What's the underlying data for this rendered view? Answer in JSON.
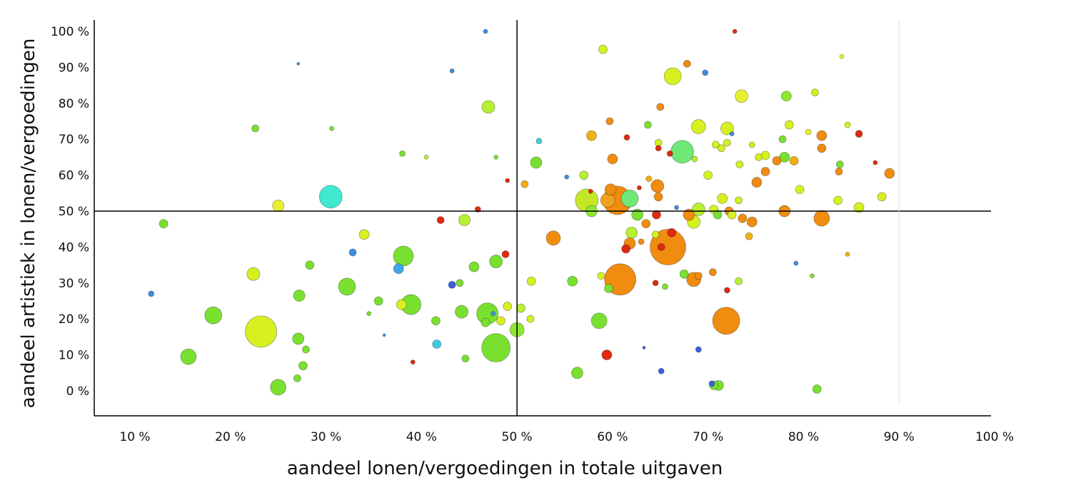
{
  "chart_data": {
    "type": "scatter",
    "title": "",
    "xlabel": "aandeel lonen/vergoedingen in totale uitgaven",
    "ylabel": "aandeel artistiek in lonen/vergoedingen",
    "xlim": [
      5.5,
      100
    ],
    "ylim": [
      -7,
      103
    ],
    "x_ticks": [
      "10 %",
      "20 %",
      "30 %",
      "40 %",
      "50 %",
      "60 %",
      "70 %",
      "80 %",
      "90 %",
      "100 %"
    ],
    "y_ticks": [
      "0 %",
      "10 %",
      "20 %",
      "30 %",
      "40 %",
      "50 %",
      "60 %",
      "70 %",
      "80 %",
      "90 %",
      "100 %"
    ],
    "reference_lines": {
      "x": 50,
      "y": 50
    },
    "grid": false,
    "legend": "none",
    "encoding": "bubble size = relative size; color hue from blue/cyan through green, yellow to orange and red",
    "points": [
      {
        "x": 46.7,
        "y": 100,
        "r": 3,
        "color": "#3b8fe0"
      },
      {
        "x": 72.8,
        "y": 100,
        "r": 3,
        "color": "#e02a10"
      },
      {
        "x": 27.1,
        "y": 91,
        "r": 2,
        "color": "#3b8fe0"
      },
      {
        "x": 43.2,
        "y": 89,
        "r": 3,
        "color": "#3b8fe0"
      },
      {
        "x": 59.0,
        "y": 95,
        "r": 6,
        "color": "#d6f020"
      },
      {
        "x": 84.0,
        "y": 93,
        "r": 3,
        "color": "#e8f030"
      },
      {
        "x": 67.8,
        "y": 91,
        "r": 5,
        "color": "#f08c10"
      },
      {
        "x": 66.3,
        "y": 87.5,
        "r": 12,
        "color": "#d6f020"
      },
      {
        "x": 69.7,
        "y": 88.5,
        "r": 4,
        "color": "#3b8fe0"
      },
      {
        "x": 47.0,
        "y": 79,
        "r": 9,
        "color": "#b6f030"
      },
      {
        "x": 73.5,
        "y": 82,
        "r": 9,
        "color": "#e8f030"
      },
      {
        "x": 78.2,
        "y": 82,
        "r": 7,
        "color": "#8de830"
      },
      {
        "x": 81.2,
        "y": 83,
        "r": 5,
        "color": "#d6f020"
      },
      {
        "x": 65.0,
        "y": 79,
        "r": 5,
        "color": "#f08c10"
      },
      {
        "x": 59.7,
        "y": 75,
        "r": 5,
        "color": "#f08c10"
      },
      {
        "x": 22.6,
        "y": 73,
        "r": 5,
        "color": "#7ae030"
      },
      {
        "x": 30.6,
        "y": 73,
        "r": 3,
        "color": "#7ae030"
      },
      {
        "x": 69.0,
        "y": 73.5,
        "r": 10,
        "color": "#d6f020"
      },
      {
        "x": 72.0,
        "y": 73,
        "r": 9,
        "color": "#d6f020"
      },
      {
        "x": 63.7,
        "y": 74,
        "r": 5,
        "color": "#7ae030"
      },
      {
        "x": 78.5,
        "y": 74,
        "r": 6,
        "color": "#d6f020"
      },
      {
        "x": 84.6,
        "y": 74,
        "r": 4,
        "color": "#d6f020"
      },
      {
        "x": 57.8,
        "y": 71,
        "r": 7,
        "color": "#f0b010"
      },
      {
        "x": 61.5,
        "y": 70.5,
        "r": 4,
        "color": "#e02a10"
      },
      {
        "x": 80.5,
        "y": 72,
        "r": 4,
        "color": "#e8f030"
      },
      {
        "x": 81.9,
        "y": 71,
        "r": 7,
        "color": "#f08c10"
      },
      {
        "x": 85.8,
        "y": 71.5,
        "r": 5,
        "color": "#e02a10"
      },
      {
        "x": 77.8,
        "y": 70,
        "r": 5,
        "color": "#7ae030"
      },
      {
        "x": 72.5,
        "y": 71.5,
        "r": 3,
        "color": "#3b8fe0"
      },
      {
        "x": 52.3,
        "y": 69.5,
        "r": 4,
        "color": "#40d0d0"
      },
      {
        "x": 64.8,
        "y": 69,
        "r": 5,
        "color": "#d6f020"
      },
      {
        "x": 70.8,
        "y": 68.5,
        "r": 5,
        "color": "#d6f020"
      },
      {
        "x": 71.4,
        "y": 67.5,
        "r": 5,
        "color": "#d6f020"
      },
      {
        "x": 72.0,
        "y": 69,
        "r": 5,
        "color": "#d6f020"
      },
      {
        "x": 74.6,
        "y": 68.5,
        "r": 4,
        "color": "#d6f020"
      },
      {
        "x": 64.8,
        "y": 67.5,
        "r": 4,
        "color": "#e02a10"
      },
      {
        "x": 81.9,
        "y": 67.5,
        "r": 6,
        "color": "#f08c10"
      },
      {
        "x": 38.0,
        "y": 66,
        "r": 4,
        "color": "#7ae030"
      },
      {
        "x": 40.5,
        "y": 65,
        "r": 3,
        "color": "#b6f030"
      },
      {
        "x": 47.8,
        "y": 65,
        "r": 3,
        "color": "#7ae030"
      },
      {
        "x": 67.3,
        "y": 66.5,
        "r": 16,
        "color": "#6ee876"
      },
      {
        "x": 66.0,
        "y": 66,
        "r": 4,
        "color": "#e02a10"
      },
      {
        "x": 76.0,
        "y": 65.5,
        "r": 6,
        "color": "#d6f020"
      },
      {
        "x": 78.0,
        "y": 65,
        "r": 7,
        "color": "#7ae030"
      },
      {
        "x": 60.0,
        "y": 64.5,
        "r": 7,
        "color": "#f08c10"
      },
      {
        "x": 77.2,
        "y": 64,
        "r": 6,
        "color": "#f08c10"
      },
      {
        "x": 75.3,
        "y": 65,
        "r": 5,
        "color": "#d6f020"
      },
      {
        "x": 79.0,
        "y": 64,
        "r": 6,
        "color": "#f0b010"
      },
      {
        "x": 52.0,
        "y": 63.5,
        "r": 8,
        "color": "#7ae030"
      },
      {
        "x": 68.6,
        "y": 64.5,
        "r": 4,
        "color": "#b6f030"
      },
      {
        "x": 73.3,
        "y": 63,
        "r": 5,
        "color": "#d6f020"
      },
      {
        "x": 83.8,
        "y": 63,
        "r": 5,
        "color": "#7ae030"
      },
      {
        "x": 87.5,
        "y": 63.5,
        "r": 3,
        "color": "#e02a10"
      },
      {
        "x": 76.0,
        "y": 61,
        "r": 6,
        "color": "#f08c10"
      },
      {
        "x": 83.7,
        "y": 61,
        "r": 5,
        "color": "#f08c10"
      },
      {
        "x": 89.0,
        "y": 60.5,
        "r": 7,
        "color": "#f08c10"
      },
      {
        "x": 55.2,
        "y": 59.5,
        "r": 3,
        "color": "#3b8fe0"
      },
      {
        "x": 57.0,
        "y": 60,
        "r": 6,
        "color": "#b6f030"
      },
      {
        "x": 70.0,
        "y": 60,
        "r": 6,
        "color": "#d6f020"
      },
      {
        "x": 49.0,
        "y": 58.5,
        "r": 3,
        "color": "#e02a10"
      },
      {
        "x": 50.8,
        "y": 57.5,
        "r": 5,
        "color": "#f0b010"
      },
      {
        "x": 63.8,
        "y": 59,
        "r": 4,
        "color": "#f0b010"
      },
      {
        "x": 75.1,
        "y": 58,
        "r": 7,
        "color": "#f08c10"
      },
      {
        "x": 62.8,
        "y": 56.5,
        "r": 3,
        "color": "#e02a10"
      },
      {
        "x": 64.7,
        "y": 57,
        "r": 9,
        "color": "#f08c10"
      },
      {
        "x": 79.6,
        "y": 56,
        "r": 6,
        "color": "#d6f020"
      },
      {
        "x": 57.7,
        "y": 55.5,
        "r": 3,
        "color": "#e02a10"
      },
      {
        "x": 59.8,
        "y": 56,
        "r": 8,
        "color": "#f08c10"
      },
      {
        "x": 64.8,
        "y": 54,
        "r": 6,
        "color": "#f08c10"
      },
      {
        "x": 30.5,
        "y": 54,
        "r": 16,
        "color": "#40e8d0"
      },
      {
        "x": 57.3,
        "y": 53,
        "r": 16,
        "color": "#c4e828"
      },
      {
        "x": 60.5,
        "y": 53,
        "r": 20,
        "color": "#f08c10"
      },
      {
        "x": 61.8,
        "y": 53.5,
        "r": 12,
        "color": "#6ee876"
      },
      {
        "x": 59.5,
        "y": 53,
        "r": 10,
        "color": "#f0a020"
      },
      {
        "x": 71.5,
        "y": 53.5,
        "r": 7,
        "color": "#d6f020"
      },
      {
        "x": 73.2,
        "y": 53,
        "r": 5,
        "color": "#d6f020"
      },
      {
        "x": 83.6,
        "y": 53,
        "r": 6,
        "color": "#d6f020"
      },
      {
        "x": 88.2,
        "y": 54,
        "r": 6,
        "color": "#d6f020"
      },
      {
        "x": 25.0,
        "y": 51.5,
        "r": 8,
        "color": "#e8f030"
      },
      {
        "x": 45.9,
        "y": 50.5,
        "r": 4,
        "color": "#e02a10"
      },
      {
        "x": 57.8,
        "y": 50,
        "r": 8,
        "color": "#8de830"
      },
      {
        "x": 66.7,
        "y": 51,
        "r": 3,
        "color": "#3b8fe0"
      },
      {
        "x": 69.0,
        "y": 50.5,
        "r": 9,
        "color": "#b6f030"
      },
      {
        "x": 70.6,
        "y": 50.5,
        "r": 6,
        "color": "#d6f020"
      },
      {
        "x": 72.2,
        "y": 50,
        "r": 6,
        "color": "#f08c10"
      },
      {
        "x": 78.0,
        "y": 50,
        "r": 8,
        "color": "#f08c10"
      },
      {
        "x": 85.8,
        "y": 51,
        "r": 7,
        "color": "#d6f020"
      },
      {
        "x": 62.6,
        "y": 49,
        "r": 8,
        "color": "#7ae030"
      },
      {
        "x": 64.6,
        "y": 49,
        "r": 6,
        "color": "#e02a10"
      },
      {
        "x": 68.0,
        "y": 49,
        "r": 8,
        "color": "#f08c10"
      },
      {
        "x": 71.0,
        "y": 49,
        "r": 6,
        "color": "#7ae030"
      },
      {
        "x": 72.5,
        "y": 49,
        "r": 6,
        "color": "#d6f020"
      },
      {
        "x": 73.6,
        "y": 48,
        "r": 6,
        "color": "#f08c10"
      },
      {
        "x": 81.9,
        "y": 48,
        "r": 11,
        "color": "#f08c10"
      },
      {
        "x": 13.0,
        "y": 46.5,
        "r": 6,
        "color": "#7ae030"
      },
      {
        "x": 42.0,
        "y": 47.5,
        "r": 5,
        "color": "#e02a10"
      },
      {
        "x": 44.5,
        "y": 47.5,
        "r": 8,
        "color": "#b6f030"
      },
      {
        "x": 63.5,
        "y": 46.5,
        "r": 6,
        "color": "#f08c10"
      },
      {
        "x": 68.5,
        "y": 47,
        "r": 9,
        "color": "#d6f020"
      },
      {
        "x": 74.6,
        "y": 47,
        "r": 7,
        "color": "#f08c10"
      },
      {
        "x": 34.0,
        "y": 43.5,
        "r": 7,
        "color": "#d6f020"
      },
      {
        "x": 62.0,
        "y": 44,
        "r": 8,
        "color": "#b6f030"
      },
      {
        "x": 64.5,
        "y": 43.5,
        "r": 5,
        "color": "#d6f020"
      },
      {
        "x": 66.2,
        "y": 44,
        "r": 6,
        "color": "#e02a10"
      },
      {
        "x": 74.3,
        "y": 43,
        "r": 5,
        "color": "#f0b010"
      },
      {
        "x": 53.8,
        "y": 42.5,
        "r": 10,
        "color": "#f08c10"
      },
      {
        "x": 61.8,
        "y": 41,
        "r": 8,
        "color": "#f08c10"
      },
      {
        "x": 63.0,
        "y": 41.5,
        "r": 4,
        "color": "#f08c10"
      },
      {
        "x": 65.8,
        "y": 40,
        "r": 25,
        "color": "#f08c10"
      },
      {
        "x": 65.1,
        "y": 40,
        "r": 5,
        "color": "#e02a10"
      },
      {
        "x": 61.4,
        "y": 39.5,
        "r": 6,
        "color": "#e02a10"
      },
      {
        "x": 32.8,
        "y": 38.5,
        "r": 5,
        "color": "#3b8fe0"
      },
      {
        "x": 38.1,
        "y": 37.5,
        "r": 14,
        "color": "#7ae030"
      },
      {
        "x": 48.8,
        "y": 38,
        "r": 5,
        "color": "#e02a10"
      },
      {
        "x": 47.8,
        "y": 36,
        "r": 9,
        "color": "#7ae030"
      },
      {
        "x": 28.3,
        "y": 35,
        "r": 6,
        "color": "#7ae030"
      },
      {
        "x": 45.5,
        "y": 34.5,
        "r": 7,
        "color": "#7ae030"
      },
      {
        "x": 37.6,
        "y": 34,
        "r": 7,
        "color": "#40a8e8"
      },
      {
        "x": 79.2,
        "y": 35.5,
        "r": 3,
        "color": "#3b8fe0"
      },
      {
        "x": 84.6,
        "y": 38,
        "r": 3,
        "color": "#f0b010"
      },
      {
        "x": 22.4,
        "y": 32.5,
        "r": 9,
        "color": "#d6f020"
      },
      {
        "x": 60.8,
        "y": 31,
        "r": 22,
        "color": "#f08c10"
      },
      {
        "x": 67.5,
        "y": 32.5,
        "r": 6,
        "color": "#7ae030"
      },
      {
        "x": 68.5,
        "y": 31,
        "r": 10,
        "color": "#f08c10"
      },
      {
        "x": 69.0,
        "y": 32,
        "r": 5,
        "color": "#f08c10"
      },
      {
        "x": 70.5,
        "y": 33,
        "r": 5,
        "color": "#f08c10"
      },
      {
        "x": 51.5,
        "y": 30.5,
        "r": 6,
        "color": "#d6f020"
      },
      {
        "x": 55.8,
        "y": 30.5,
        "r": 7,
        "color": "#7ae030"
      },
      {
        "x": 58.8,
        "y": 32,
        "r": 5,
        "color": "#d6f020"
      },
      {
        "x": 73.2,
        "y": 30.5,
        "r": 5,
        "color": "#b6f030"
      },
      {
        "x": 80.9,
        "y": 32,
        "r": 3,
        "color": "#7ae030"
      },
      {
        "x": 11.7,
        "y": 27,
        "r": 4,
        "color": "#3b8fe0"
      },
      {
        "x": 32.2,
        "y": 29,
        "r": 12,
        "color": "#7ae030"
      },
      {
        "x": 27.2,
        "y": 26.5,
        "r": 8,
        "color": "#7ae030"
      },
      {
        "x": 43.2,
        "y": 29.5,
        "r": 5,
        "color": "#3b5fe0"
      },
      {
        "x": 44.0,
        "y": 30,
        "r": 5,
        "color": "#7ae030"
      },
      {
        "x": 59.6,
        "y": 28.5,
        "r": 6,
        "color": "#7ae030"
      },
      {
        "x": 64.5,
        "y": 30,
        "r": 4,
        "color": "#e02a10"
      },
      {
        "x": 65.5,
        "y": 29,
        "r": 4,
        "color": "#7ae030"
      },
      {
        "x": 72.0,
        "y": 28,
        "r": 4,
        "color": "#e02a10"
      },
      {
        "x": 35.5,
        "y": 25,
        "r": 6,
        "color": "#7ae030"
      },
      {
        "x": 37.9,
        "y": 24,
        "r": 7,
        "color": "#d6f020"
      },
      {
        "x": 38.9,
        "y": 24,
        "r": 14,
        "color": "#7ae030"
      },
      {
        "x": 49.0,
        "y": 23.5,
        "r": 6,
        "color": "#d6f020"
      },
      {
        "x": 50.4,
        "y": 23,
        "r": 6,
        "color": "#b6f030"
      },
      {
        "x": 34.5,
        "y": 21.5,
        "r": 3,
        "color": "#7ae030"
      },
      {
        "x": 44.2,
        "y": 22,
        "r": 9,
        "color": "#7ae030"
      },
      {
        "x": 46.9,
        "y": 21.5,
        "r": 15,
        "color": "#7ae030"
      },
      {
        "x": 47.5,
        "y": 21.5,
        "r": 3,
        "color": "#3b8fe0"
      },
      {
        "x": 18.2,
        "y": 21,
        "r": 12,
        "color": "#7ae030"
      },
      {
        "x": 23.2,
        "y": 16.5,
        "r": 22,
        "color": "#d6f020"
      },
      {
        "x": 41.5,
        "y": 19.5,
        "r": 6,
        "color": "#7ae030"
      },
      {
        "x": 48.3,
        "y": 19.5,
        "r": 6,
        "color": "#d6f020"
      },
      {
        "x": 51.4,
        "y": 20,
        "r": 5,
        "color": "#d6f020"
      },
      {
        "x": 46.7,
        "y": 19,
        "r": 6,
        "color": "#7ae030"
      },
      {
        "x": 58.6,
        "y": 19.5,
        "r": 11,
        "color": "#7ae030"
      },
      {
        "x": 71.9,
        "y": 19.5,
        "r": 19,
        "color": "#f08c10"
      },
      {
        "x": 50.0,
        "y": 17,
        "r": 10,
        "color": "#8de830"
      },
      {
        "x": 27.1,
        "y": 14.5,
        "r": 8,
        "color": "#7ae030"
      },
      {
        "x": 36.1,
        "y": 15.5,
        "r": 2,
        "color": "#3b8fe0"
      },
      {
        "x": 41.6,
        "y": 13,
        "r": 6,
        "color": "#40c8e0"
      },
      {
        "x": 47.8,
        "y": 12,
        "r": 20,
        "color": "#7ae030"
      },
      {
        "x": 27.9,
        "y": 11.5,
        "r": 5,
        "color": "#7ae030"
      },
      {
        "x": 63.3,
        "y": 12,
        "r": 2,
        "color": "#3b5fe0"
      },
      {
        "x": 69.0,
        "y": 11.5,
        "r": 4,
        "color": "#3b5fe0"
      },
      {
        "x": 15.6,
        "y": 9.5,
        "r": 11,
        "color": "#7ae030"
      },
      {
        "x": 44.6,
        "y": 9,
        "r": 5,
        "color": "#7ae030"
      },
      {
        "x": 59.4,
        "y": 10,
        "r": 7,
        "color": "#e02a10"
      },
      {
        "x": 27.6,
        "y": 7,
        "r": 6,
        "color": "#7ae030"
      },
      {
        "x": 39.1,
        "y": 8,
        "r": 3,
        "color": "#e02a10"
      },
      {
        "x": 65.1,
        "y": 5.5,
        "r": 4,
        "color": "#3b5fe0"
      },
      {
        "x": 56.3,
        "y": 5,
        "r": 8,
        "color": "#7ae030"
      },
      {
        "x": 27.0,
        "y": 3.5,
        "r": 5,
        "color": "#7ae030"
      },
      {
        "x": 25.0,
        "y": 1,
        "r": 11,
        "color": "#7ae030"
      },
      {
        "x": 70.6,
        "y": 1.5,
        "r": 6,
        "color": "#7ae030"
      },
      {
        "x": 70.4,
        "y": 2,
        "r": 4,
        "color": "#3b5fe0"
      },
      {
        "x": 71.1,
        "y": 1.5,
        "r": 7,
        "color": "#7ae030"
      },
      {
        "x": 81.4,
        "y": 0.5,
        "r": 6,
        "color": "#7ae030"
      }
    ]
  }
}
